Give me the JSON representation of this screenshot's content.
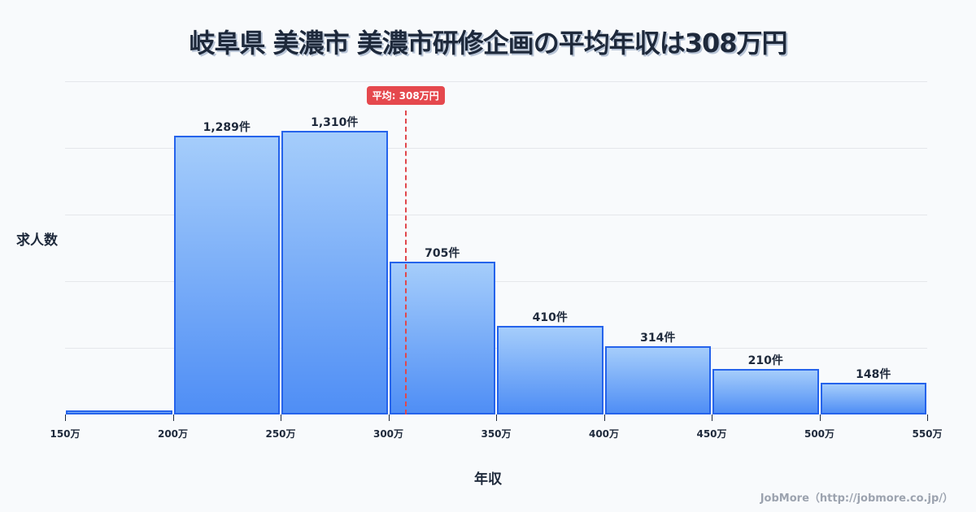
{
  "title": "岐阜県 美濃市 美濃市研修企画の平均年収は308万円",
  "axes": {
    "ylabel": "求人数",
    "xlabel": "年収"
  },
  "average": {
    "label": "平均: 308万円",
    "value": 308
  },
  "credit": "JobMore（http://jobmore.co.jp/）",
  "ticks": [
    "150万",
    "200万",
    "250万",
    "300万",
    "350万",
    "400万",
    "450万",
    "500万",
    "550万"
  ],
  "bars": [
    {
      "range": "150-200万",
      "value": 19,
      "label": ""
    },
    {
      "range": "200-250万",
      "value": 1289,
      "label": "1,289件"
    },
    {
      "range": "250-300万",
      "value": 1310,
      "label": "1,310件"
    },
    {
      "range": "300-350万",
      "value": 705,
      "label": "705件"
    },
    {
      "range": "350-400万",
      "value": 410,
      "label": "410件"
    },
    {
      "range": "400-450万",
      "value": 314,
      "label": "314件"
    },
    {
      "range": "450-500万",
      "value": 210,
      "label": "210件"
    },
    {
      "range": "500-550万",
      "value": 148,
      "label": "148件"
    }
  ],
  "colors": {
    "bar_top": "#a5cdfb",
    "bar_bottom": "#4f8ef5",
    "bar_border": "#2563eb",
    "average_line": "#e5484d"
  },
  "chart_data": {
    "type": "bar",
    "title": "岐阜県 美濃市 美濃市研修企画の平均年収は308万円",
    "xlabel": "年収",
    "ylabel": "求人数",
    "categories": [
      "150-200万",
      "200-250万",
      "250-300万",
      "300-350万",
      "350-400万",
      "400-450万",
      "450-500万",
      "500-550万"
    ],
    "values": [
      19,
      1289,
      1310,
      705,
      410,
      314,
      210,
      148
    ],
    "x_ticks": [
      "150万",
      "200万",
      "250万",
      "300万",
      "350万",
      "400万",
      "450万",
      "500万",
      "550万"
    ],
    "annotations": [
      {
        "type": "vline",
        "x": 308,
        "label": "平均: 308万円"
      }
    ],
    "ylim": [
      0,
      1540
    ],
    "grid": true,
    "legend": null
  }
}
